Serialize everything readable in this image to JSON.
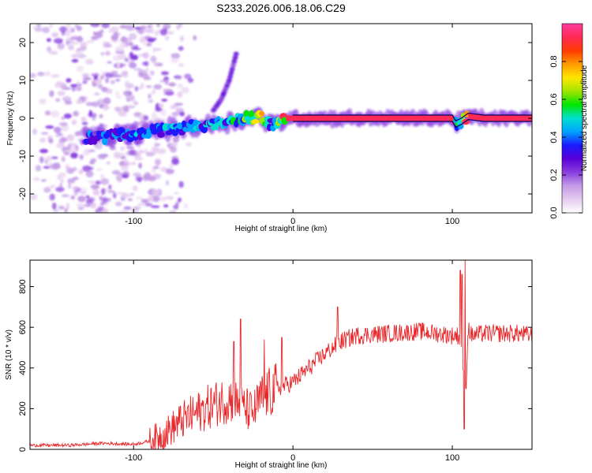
{
  "page_title": "S233.2026.006.18.06.C29",
  "colorbar": {
    "label": "Normalized spectral amplitude",
    "ticks": [
      "0.0",
      "0.2",
      "0.4",
      "0.6",
      "0.8"
    ],
    "colors": [
      "#ffffff",
      "#e6ccf0",
      "#c39be6",
      "#8a3ee0",
      "#5a00d8",
      "#1a1aff",
      "#00a2ff",
      "#00e0d0",
      "#00e600",
      "#a0e600",
      "#ffe600",
      "#ff9a00",
      "#ff3a00",
      "#ff2a55",
      "#ff3ca0"
    ]
  },
  "chart_data": [
    {
      "type": "heatmap",
      "title": "S233.2026.006.18.06.C29",
      "xlabel": "Height of straight line (km)",
      "ylabel": "Frequency (Hz)",
      "xlim": [
        -165,
        150
      ],
      "ylim": [
        -25,
        25
      ],
      "xticks": [
        -100,
        0,
        100
      ],
      "yticks": [
        -20,
        -10,
        0,
        10,
        20
      ],
      "xtick_labels": [
        "-100",
        "0",
        "100"
      ],
      "ytick_labels": [
        "-20",
        "-10",
        "0",
        "10",
        "20"
      ],
      "ridge": {
        "x": [
          -130,
          -120,
          -110,
          -100,
          -90,
          -80,
          -70,
          -60,
          -50,
          -40,
          -30,
          -20,
          -15,
          -12,
          -8,
          -5,
          0,
          10,
          20,
          40,
          60,
          80,
          95,
          100,
          102,
          105,
          110,
          120,
          140,
          150
        ],
        "freq": [
          -5,
          -5,
          -4.5,
          -4,
          -3.5,
          -3,
          -2.5,
          -2,
          -1.5,
          -1,
          0,
          0.5,
          -1.5,
          -2,
          -1,
          0,
          0,
          0,
          0,
          0,
          0,
          0,
          0,
          0,
          -1.5,
          -1,
          0.5,
          0,
          0,
          0
        ],
        "amplitude": [
          0.3,
          0.35,
          0.35,
          0.4,
          0.35,
          0.4,
          0.35,
          0.4,
          0.4,
          0.45,
          0.5,
          0.7,
          0.4,
          0.35,
          0.6,
          0.8,
          0.95,
          0.95,
          0.95,
          0.95,
          0.95,
          0.95,
          0.95,
          0.9,
          0.5,
          0.5,
          0.85,
          0.95,
          0.95,
          0.95
        ]
      },
      "noise_region": {
        "x_range": [
          -165,
          -80
        ],
        "freq_range": [
          -25,
          25
        ],
        "amplitude": 0.1
      },
      "side_branch": {
        "x": [
          -50,
          -45,
          -40,
          -35
        ],
        "freq": [
          2,
          5,
          10,
          18
        ]
      }
    },
    {
      "type": "line",
      "xlabel": "Height of straight line (km)",
      "ylabel": "SNR (10 * v/v)",
      "xlim": [
        -165,
        150
      ],
      "ylim": [
        0,
        930
      ],
      "xticks": [
        -100,
        0,
        100
      ],
      "yticks": [
        0,
        200,
        400,
        600,
        800
      ],
      "xtick_labels": [
        "-100",
        "0",
        "100"
      ],
      "ytick_labels": [
        "0",
        "200",
        "400",
        "600",
        "800"
      ],
      "color": "#e8282b",
      "anchors": {
        "x": [
          -165,
          -140,
          -120,
          -100,
          -90,
          -80,
          -70,
          -60,
          -50,
          -40,
          -30,
          -25,
          -20,
          -10,
          0,
          10,
          20,
          30,
          40,
          60,
          80,
          100,
          104,
          106,
          108,
          110,
          112,
          120,
          140,
          150
        ],
        "y": [
          20,
          20,
          30,
          25,
          40,
          80,
          140,
          180,
          220,
          250,
          200,
          180,
          250,
          300,
          330,
          400,
          470,
          530,
          560,
          570,
          580,
          560,
          560,
          500,
          200,
          600,
          560,
          570,
          570,
          560
        ]
      },
      "spikes": [
        {
          "x": -37,
          "y": 530
        },
        {
          "x": -33,
          "y": 640
        },
        {
          "x": -18,
          "y": 540
        },
        {
          "x": -7,
          "y": 550
        },
        {
          "x": 28,
          "y": 700
        },
        {
          "x": 105,
          "y": 880
        },
        {
          "x": 106,
          "y": 860
        },
        {
          "x": 108,
          "y": 930
        },
        {
          "x": 107.5,
          "y": 100
        }
      ]
    }
  ]
}
